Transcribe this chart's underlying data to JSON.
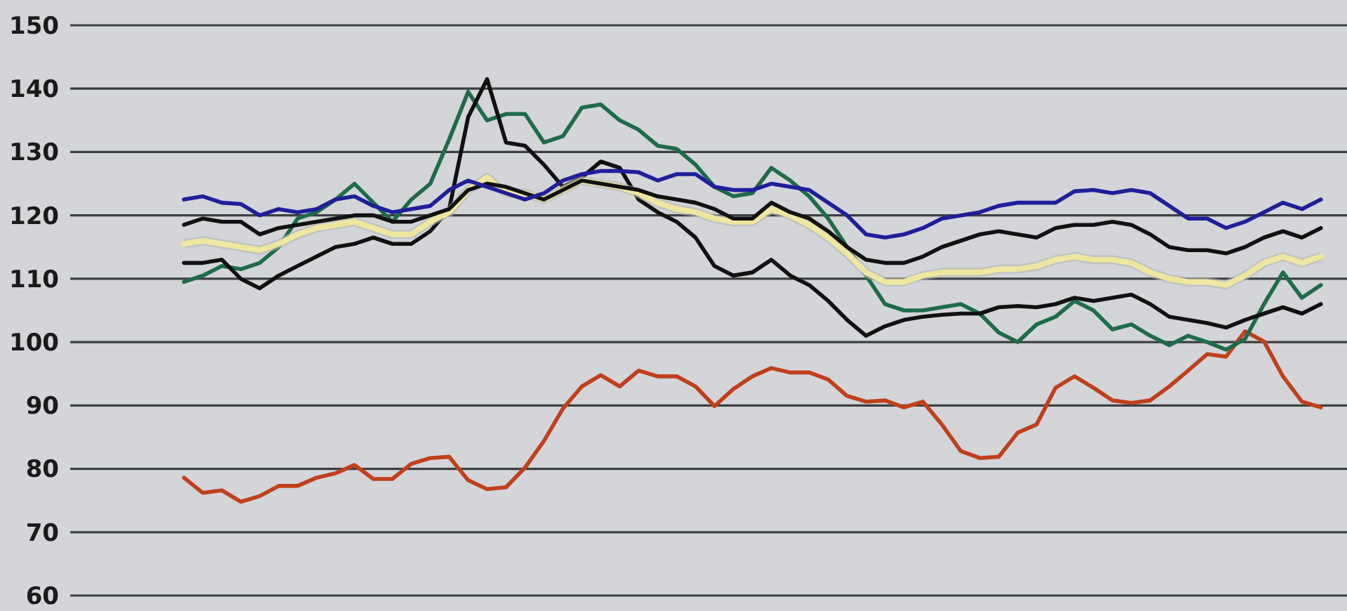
{
  "chart_data": {
    "type": "line",
    "categories": [
      null,
      null,
      null,
      null,
      null,
      null,
      null,
      null,
      null,
      null,
      null,
      null,
      null,
      null,
      null,
      null,
      null,
      null,
      null,
      null,
      null,
      null,
      null,
      null,
      null,
      null,
      null,
      null,
      null,
      null,
      null,
      null,
      null,
      null,
      null,
      null,
      null,
      null,
      null,
      null,
      null,
      null,
      null,
      null,
      null,
      null,
      null,
      null,
      null,
      null,
      null,
      null,
      null,
      null,
      null,
      null,
      null,
      null,
      null,
      null,
      null
    ],
    "ylim": [
      60,
      150
    ],
    "yticks": [
      60,
      70,
      80,
      90,
      100,
      110,
      120,
      130,
      140,
      150
    ],
    "tick_labels": "y",
    "grid": "y",
    "marker": "none",
    "line_style": "solid",
    "series": [
      {
        "color": "#c0401c",
        "values": [
          78.6,
          76.2,
          76.6,
          74.8,
          75.7,
          77.3,
          77.3,
          78.6,
          79.3,
          80.6,
          78.4,
          78.4,
          80.8,
          81.7,
          81.9,
          78.2,
          76.8,
          77.1,
          80.2,
          84.4,
          89.5,
          93,
          94.8,
          93,
          95.5,
          94.6,
          94.6,
          93,
          89.9,
          92.6,
          94.6,
          95.9,
          95.2,
          95.2,
          94.1,
          91.5,
          90.6,
          90.8,
          89.7,
          90.6,
          87,
          82.8,
          81.7,
          81.9,
          85.7,
          87,
          92.8,
          94.6,
          92.8,
          90.8,
          90.4,
          90.8,
          93,
          95.5,
          98.1,
          97.7,
          101.7,
          100.1,
          94.6,
          90.6,
          89.7
        ]
      },
      {
        "color": "#1e6b4a",
        "values": [
          109.5,
          110.5,
          112,
          111.5,
          112.5,
          115,
          119.5,
          120.5,
          122.5,
          125,
          122,
          119,
          122.5,
          125,
          132,
          139.5,
          135,
          136,
          136,
          131.5,
          132.5,
          137,
          137.5,
          135,
          133.5,
          131,
          130.5,
          128,
          124.5,
          123,
          123.5,
          127.5,
          125.5,
          123,
          119.5,
          115,
          110.5,
          106,
          105,
          105,
          105.5,
          106,
          104.5,
          101.5,
          100,
          102.8,
          104,
          106.5,
          105,
          102,
          102.8,
          101,
          99.5,
          101,
          100,
          98.8,
          100.5,
          106,
          111,
          107,
          109
        ]
      },
      {
        "color": "#111111",
        "values": [
          112.5,
          112.5,
          113,
          110,
          108.5,
          110.5,
          112,
          113.5,
          115,
          115.5,
          116.5,
          115.5,
          115.5,
          117.5,
          121,
          135.5,
          141.5,
          131.5,
          131,
          128,
          124.5,
          126,
          128.5,
          127.5,
          122.5,
          120.5,
          119,
          116.5,
          112,
          110.5,
          111,
          113,
          110.5,
          109,
          106.5,
          103.5,
          101,
          102.5,
          103.5,
          104,
          104.3,
          104.5,
          104.5,
          105.5,
          105.7,
          105.5,
          106,
          107,
          106.5,
          107,
          107.5,
          106,
          104,
          103.5,
          103,
          102.3,
          103.5,
          104.5,
          105.5,
          104.5,
          106
        ]
      },
      {
        "color": "#efe6a0",
        "values": [
          115.5,
          116,
          115.5,
          115,
          114.5,
          115.5,
          117,
          118,
          118.5,
          119,
          118,
          117,
          117,
          119,
          120.5,
          124,
          126,
          123.5,
          123.5,
          122.5,
          124,
          125.5,
          125,
          124.5,
          123.5,
          122,
          121,
          120.5,
          119.5,
          119,
          119,
          121,
          120,
          118.5,
          116.5,
          114,
          111,
          109.5,
          109.5,
          110.5,
          111,
          111,
          111,
          111.5,
          111.5,
          112,
          113,
          113.5,
          113,
          113,
          112.5,
          111,
          110,
          109.5,
          109.5,
          109,
          110.5,
          112.5,
          113.5,
          112.5,
          113.5
        ]
      },
      {
        "color": "#111111",
        "values": [
          118.5,
          119.5,
          119,
          119,
          117,
          118,
          118.5,
          119,
          119.5,
          120,
          120,
          119,
          119,
          120,
          121,
          124,
          125,
          124.5,
          123.5,
          122.5,
          124,
          125.5,
          125,
          124.5,
          124,
          123,
          122.5,
          122,
          121,
          119.5,
          119.5,
          122,
          120.5,
          119.5,
          117.5,
          115,
          113,
          112.5,
          112.5,
          113.5,
          115,
          116,
          117,
          117.5,
          117,
          116.5,
          118,
          118.5,
          118.5,
          119,
          118.5,
          117,
          115,
          114.5,
          114.5,
          114,
          115,
          116.5,
          117.5,
          116.5,
          118
        ]
      },
      {
        "color": "#1f1f9a",
        "values": [
          122.5,
          123,
          122,
          121.8,
          120,
          121,
          120.5,
          121,
          122.5,
          123,
          121.5,
          120.5,
          121,
          121.5,
          124,
          125.5,
          124.5,
          123.5,
          122.5,
          123.5,
          125.5,
          126.5,
          127,
          127,
          126.8,
          125.5,
          126.5,
          126.5,
          124.5,
          124,
          124,
          125,
          124.5,
          124,
          122,
          120,
          117,
          116.5,
          117,
          118,
          119.5,
          120,
          120.5,
          121.5,
          122,
          122,
          122,
          123.8,
          124,
          123.5,
          124,
          123.5,
          121.5,
          119.5,
          119.5,
          118,
          119,
          120.5,
          122,
          121,
          122.5
        ]
      }
    ]
  }
}
